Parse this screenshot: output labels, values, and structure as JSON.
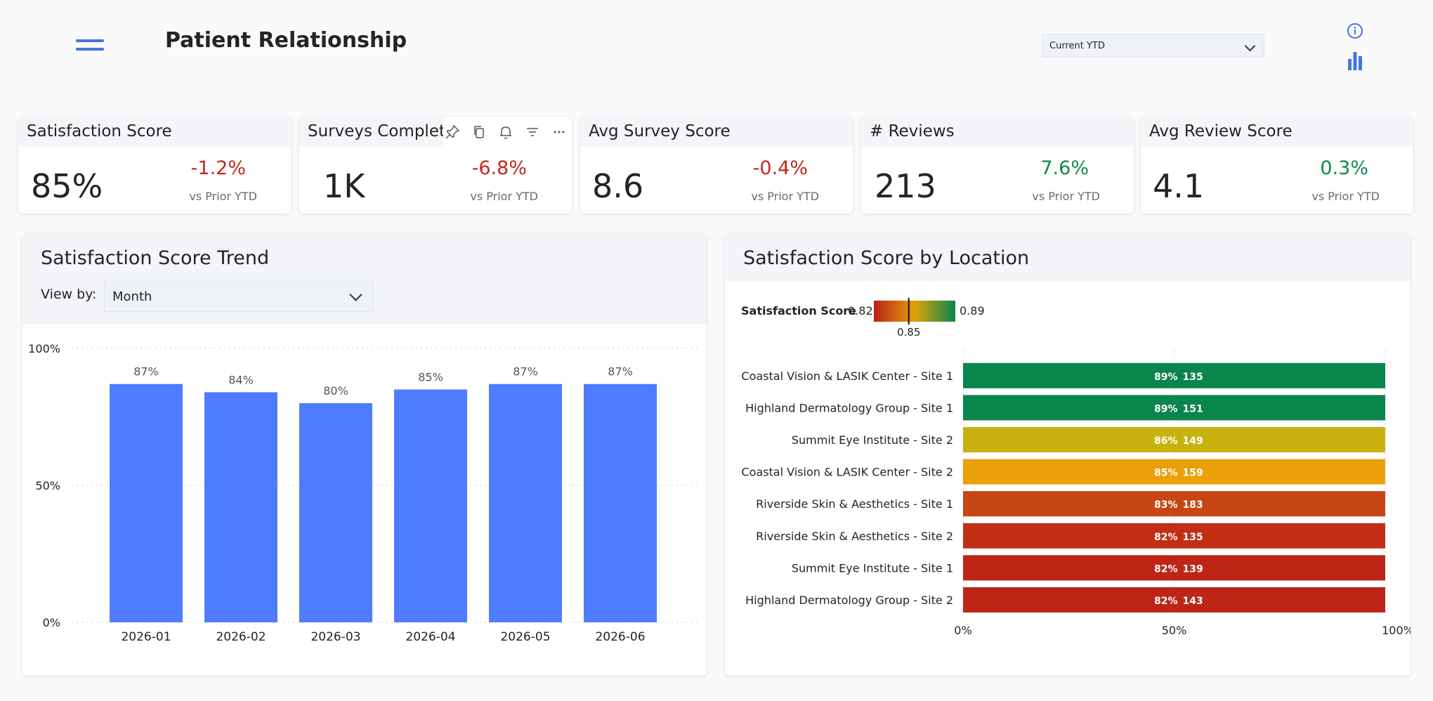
{
  "header": {
    "title": "Patient Relationship",
    "period": {
      "selected": "Current YTD"
    }
  },
  "kpis": [
    {
      "title": "Satisfaction Score",
      "value": "85%",
      "delta": "-1.2%",
      "trend": "negative",
      "compare": "vs Prior YTD"
    },
    {
      "title": "Surveys Completed",
      "value": "1K",
      "delta": "-6.8%",
      "trend": "negative",
      "compare": "vs Prior YTD"
    },
    {
      "title": "Avg Survey Score",
      "value": "8.6",
      "delta": "-0.4%",
      "trend": "negative",
      "compare": "vs Prior YTD"
    },
    {
      "title": "# Reviews",
      "value": "213",
      "delta": "7.6%",
      "trend": "positive",
      "compare": "vs Prior YTD"
    },
    {
      "title": "Avg Review Score",
      "value": "4.1",
      "delta": "0.3%",
      "trend": "positive",
      "compare": "vs Prior YTD"
    }
  ],
  "visual_toolbar": [
    "pin-icon",
    "copy-icon",
    "bell-icon",
    "filter-icon",
    "more-icon"
  ],
  "trend_panel": {
    "title": "Satisfaction Score Trend",
    "view_by_label": "View by:",
    "view_by_selected": "Month"
  },
  "location_panel": {
    "title": "Satisfaction Score by Location"
  },
  "chart_data": [
    {
      "type": "bar",
      "title": "Satisfaction Score Trend",
      "categories": [
        "2026-01",
        "2026-02",
        "2026-03",
        "2026-04",
        "2026-05",
        "2026-06"
      ],
      "values": [
        87,
        84,
        80,
        85,
        87,
        87
      ],
      "data_labels": [
        "87%",
        "84%",
        "80%",
        "85%",
        "87%",
        "87%"
      ],
      "ylim": [
        0,
        100
      ],
      "y_ticks": [
        "0%",
        "50%",
        "100%"
      ],
      "grid": true,
      "color": "#4f7cff"
    },
    {
      "type": "bar",
      "orientation": "horizontal",
      "title": "Satisfaction Score by Location",
      "legend": {
        "title": "Satisfaction Score",
        "min_label": "0.82",
        "max_label": "0.89",
        "mid_label": "0.85",
        "min": 0.82,
        "max": 0.89,
        "mid": 0.85,
        "placement": "top-left"
      },
      "categories": [
        "Coastal Vision & LASIK Center - Site 1",
        "Highland Dermatology Group - Site 1",
        "Summit Eye Institute - Site 2",
        "Coastal Vision & LASIK Center - Site 2",
        "Riverside Skin & Aesthetics - Site 1",
        "Riverside Skin & Aesthetics - Site 2",
        "Summit Eye Institute - Site 1",
        "Highland Dermatology Group - Site 2"
      ],
      "values": [
        89,
        89,
        86,
        85,
        83,
        82,
        82,
        82
      ],
      "value_labels": [
        "89%",
        "89%",
        "86%",
        "85%",
        "83%",
        "82%",
        "82%",
        "82%"
      ],
      "counts": [
        "135",
        "151",
        "149",
        "159",
        "183",
        "135",
        "139",
        "143"
      ],
      "colors": [
        "#0a854d",
        "#0a854d",
        "#c9b20f",
        "#e9a00a",
        "#c74614",
        "#c12e14",
        "#bd2517",
        "#bd2517"
      ],
      "xlim": [
        0,
        100
      ],
      "x_ticks": [
        "0%",
        "50%",
        "100%"
      ],
      "grid": true
    }
  ]
}
